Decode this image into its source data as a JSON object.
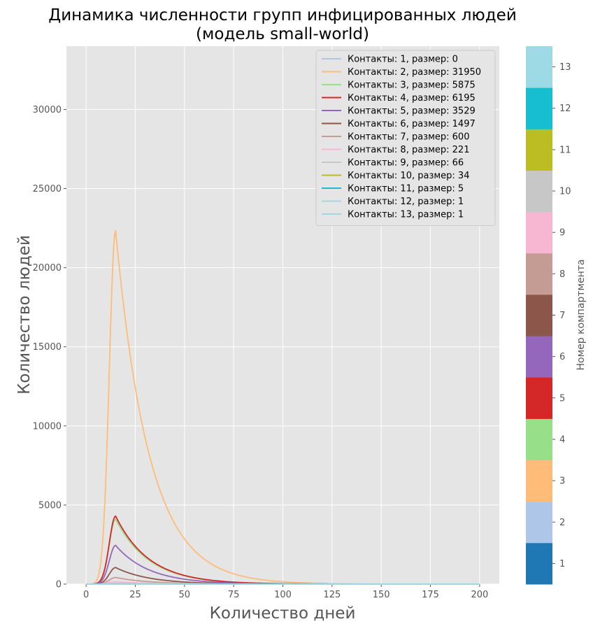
{
  "chart_data": {
    "type": "line",
    "title_line1": "Динамика численности групп инфицированных людей",
    "title_line2": "(модель small-world)",
    "xlabel": "Количество дней",
    "ylabel": "Количество людей",
    "xlim": [
      -10,
      210
    ],
    "ylim": [
      0,
      34000
    ],
    "xticks": [
      0,
      25,
      50,
      75,
      100,
      125,
      150,
      175,
      200
    ],
    "yticks": [
      0,
      5000,
      10000,
      15000,
      20000,
      25000,
      30000
    ],
    "grid": true,
    "legend_position": "top-right",
    "series": [
      {
        "name": "Контакты: 1, размер: 0",
        "color": "#aec7e8",
        "peak": 0
      },
      {
        "name": "Контакты: 2, размер: 31950",
        "color": "#ffbb78",
        "peak": 22350
      },
      {
        "name": "Контакты: 3, размер: 5875",
        "color": "#98df8a",
        "peak": 4100
      },
      {
        "name": "Контакты: 4, размер: 6195",
        "color": "#d62728",
        "peak": 4300
      },
      {
        "name": "Контакты: 5, размер: 3529",
        "color": "#9467bd",
        "peak": 2450
      },
      {
        "name": "Контакты: 6, размер: 1497",
        "color": "#8c564b",
        "peak": 1050
      },
      {
        "name": "Контакты: 7, размер: 600",
        "color": "#c49c94",
        "peak": 420
      },
      {
        "name": "Контакты: 8, размер: 221",
        "color": "#f7b6d2",
        "peak": 155
      },
      {
        "name": "Контакты: 9, размер: 66",
        "color": "#c7c7c7",
        "peak": 46
      },
      {
        "name": "Контакты: 10, размер: 34",
        "color": "#bcbd22",
        "peak": 24
      },
      {
        "name": "Контакты: 11, размер: 5",
        "color": "#17becf",
        "peak": 4
      },
      {
        "name": "Контакты: 12, размер: 1",
        "color": "#9edae5",
        "peak": 1
      },
      {
        "name": "Контакты: 13, размер: 1",
        "color": "#9edae5",
        "peak": 1
      }
    ],
    "colorbar": {
      "label": "Номер компартмента",
      "ticks": [
        1,
        2,
        3,
        4,
        5,
        6,
        7,
        8,
        9,
        10,
        11,
        12,
        13
      ],
      "colors": [
        "#1f77b4",
        "#aec7e8",
        "#ffbb78",
        "#98df8a",
        "#d62728",
        "#9467bd",
        "#8c564b",
        "#c49c94",
        "#f7b6d2",
        "#c7c7c7",
        "#bcbd22",
        "#17becf",
        "#9edae5"
      ]
    }
  }
}
